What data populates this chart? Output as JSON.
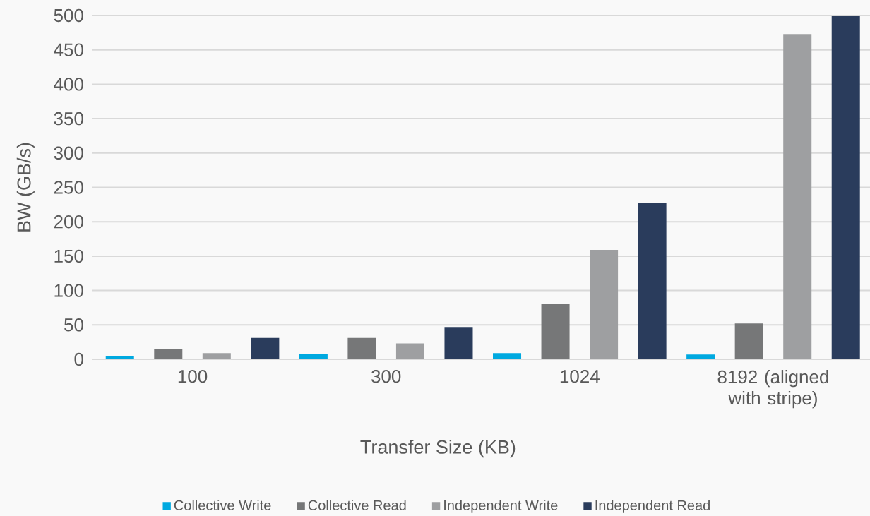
{
  "chart_data": {
    "type": "bar",
    "xlabel": "Transfer Size (KB)",
    "ylabel": "BW (GB/s)",
    "categories": [
      "100",
      "300",
      "1024",
      "8192  (aligned with stripe)"
    ],
    "series": [
      {
        "name": "Collective Write",
        "color": "#00a9e0",
        "values": [
          5,
          8,
          9,
          7
        ]
      },
      {
        "name": "Collective Read",
        "color": "#767778",
        "values": [
          15,
          31,
          80,
          52
        ]
      },
      {
        "name": "Independent Write",
        "color": "#9e9fa1",
        "values": [
          9,
          23,
          159,
          473
        ]
      },
      {
        "name": "Independent Read",
        "color": "#2a3c5c",
        "values": [
          31,
          47,
          227,
          500
        ]
      }
    ],
    "ylim": [
      0,
      500
    ],
    "yticks": [
      0,
      50,
      100,
      150,
      200,
      250,
      300,
      350,
      400,
      450,
      500
    ],
    "grid": "y",
    "legend": "bottom"
  }
}
